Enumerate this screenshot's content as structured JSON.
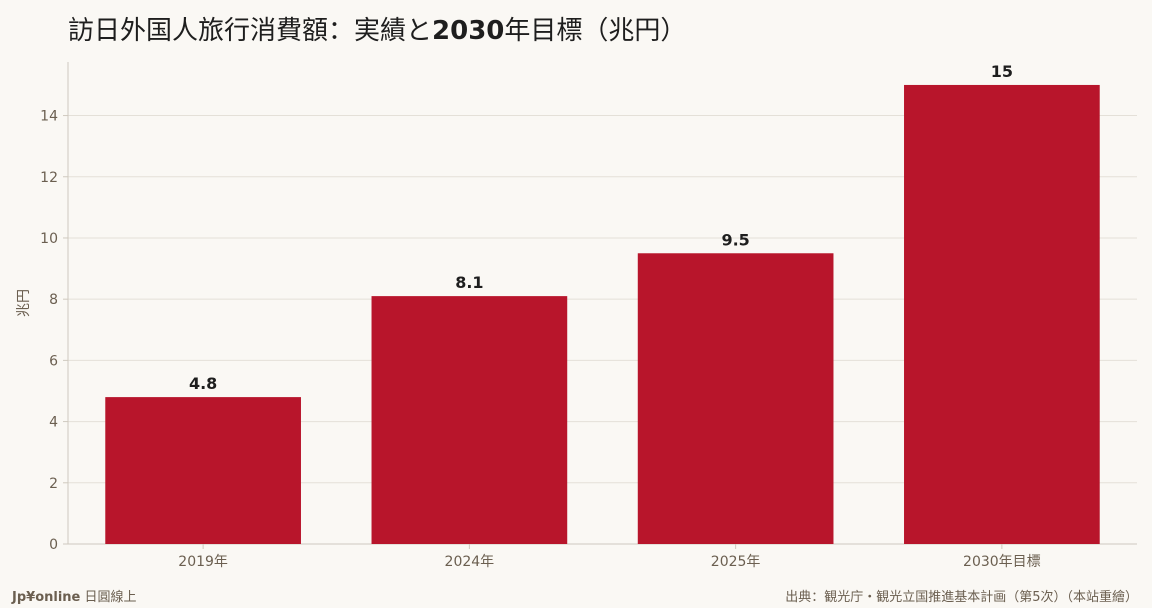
{
  "title": {
    "part1": "訪日外国人旅行消費額：実績と",
    "year": "2030",
    "part2": "年目標（兆円）"
  },
  "footer": {
    "brand": "Jp¥online",
    "brand_suffix": "日圓線上",
    "source": "出典：観光庁・観光立国推進基本計画（第5次）（本站重繪）"
  },
  "colors": {
    "bar": "#b8152b",
    "background": "#faf8f4",
    "grid": "#e4e0d8",
    "axis_text": "#6b5f50",
    "label_text": "#1e1e1e"
  },
  "chart_data": {
    "type": "bar",
    "categories": [
      "2019年",
      "2024年",
      "2025年",
      "2030年目標"
    ],
    "values": [
      4.8,
      8.1,
      9.5,
      15
    ],
    "value_labels": [
      "4.8",
      "8.1",
      "9.5",
      "15"
    ],
    "xlabel": "",
    "ylabel": "兆円",
    "ylim": [
      0,
      15.75
    ],
    "yticks": [
      0,
      2,
      4,
      6,
      8,
      10,
      12,
      14
    ],
    "grid": true,
    "legend": "none"
  }
}
